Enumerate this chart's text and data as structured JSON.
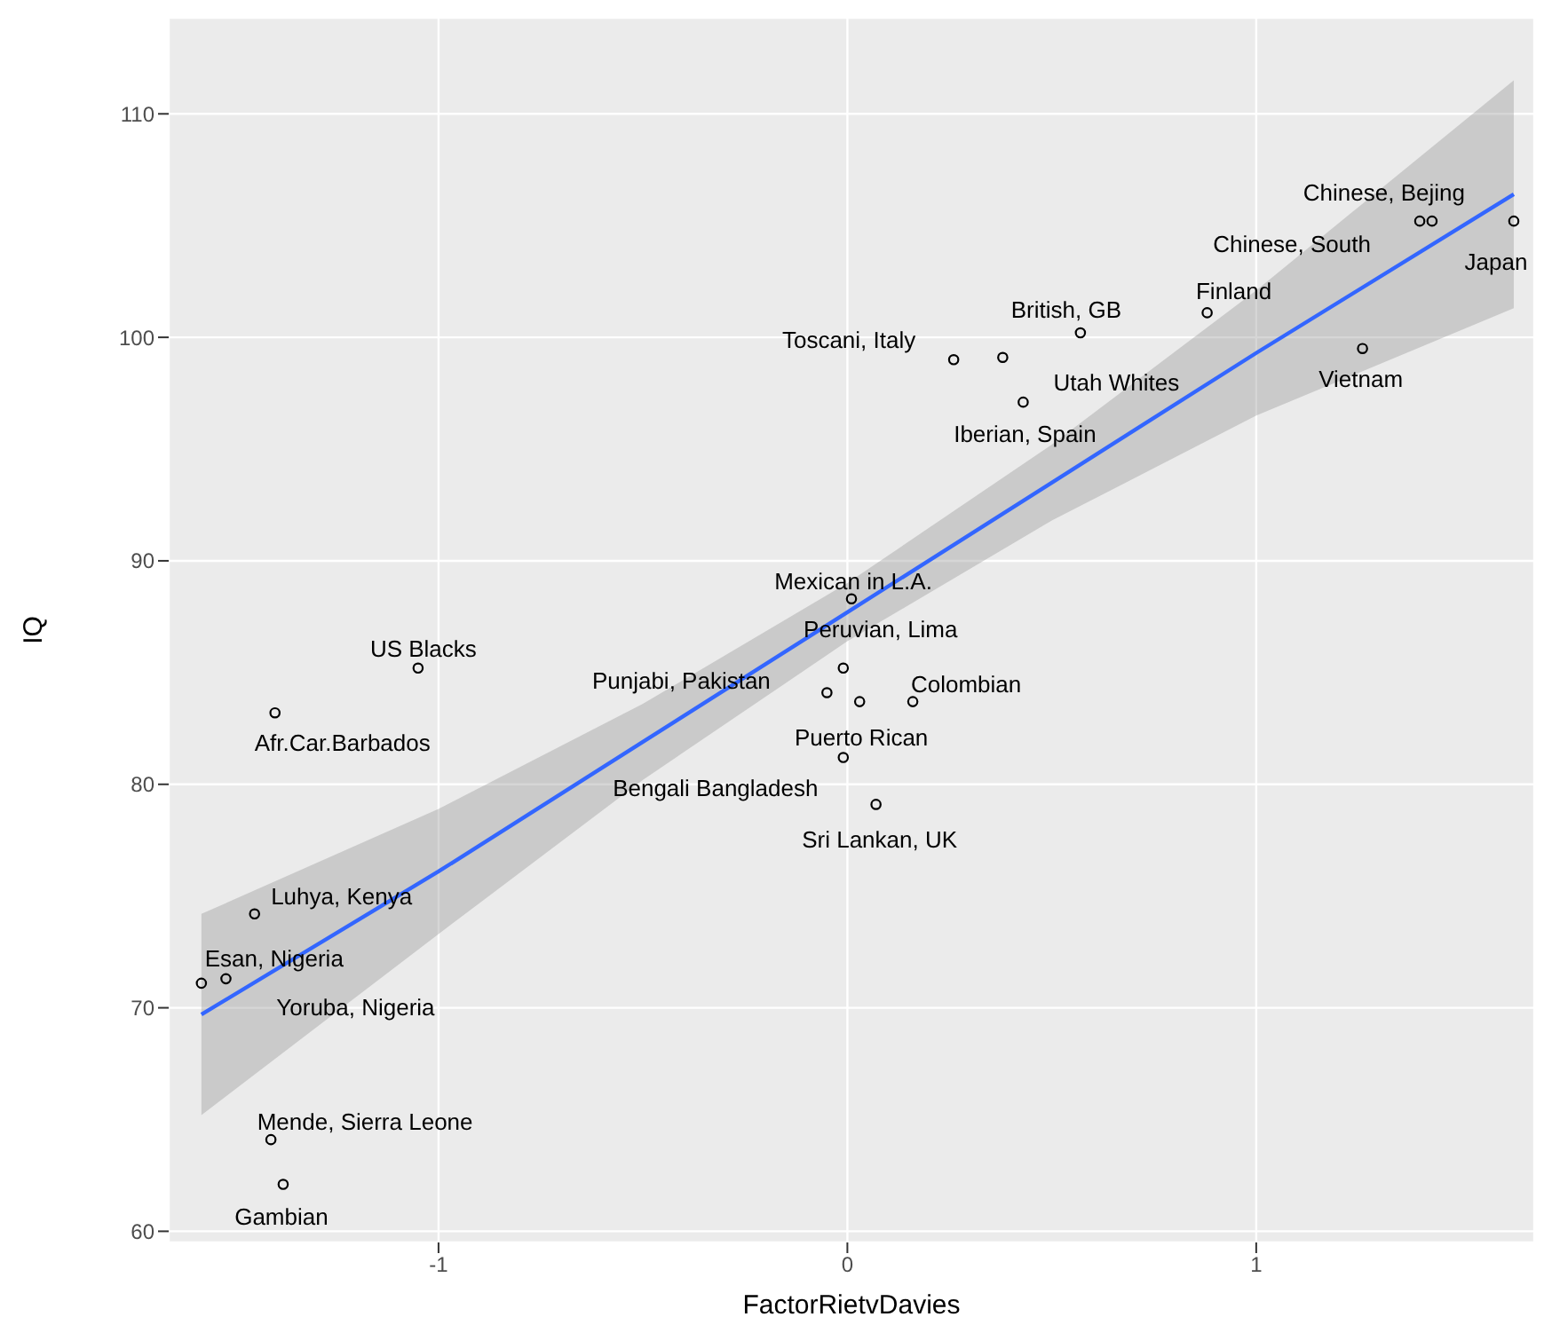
{
  "chart_data": {
    "type": "scatter",
    "xlabel": "FactorRietvDavies",
    "ylabel": "IQ",
    "xlim": [
      -1.66,
      1.68
    ],
    "ylim": [
      59.5,
      114.3
    ],
    "xticks": [
      -1,
      0,
      1
    ],
    "yticks": [
      60,
      70,
      80,
      90,
      100,
      110
    ],
    "grid": true,
    "series": [
      {
        "type": "scatter",
        "marker": "circle",
        "color": "#000000",
        "x": [
          1.43,
          1.4,
          1.63,
          0.88,
          0.57,
          0.26,
          0.38,
          0.43,
          1.26,
          0.01,
          -0.01,
          -0.05,
          0.16,
          0.03,
          -0.01,
          0.07,
          -1.05,
          -1.4,
          -1.45,
          -1.58,
          -1.52,
          -1.41,
          -1.38
        ],
        "values": [
          105.2,
          105.2,
          105.2,
          101.1,
          100.2,
          99.0,
          99.1,
          97.1,
          99.5,
          88.3,
          85.2,
          84.1,
          83.7,
          83.7,
          81.2,
          79.1,
          85.2,
          83.2,
          74.2,
          71.1,
          71.3,
          64.1,
          62.1
        ]
      },
      {
        "type": "line",
        "color": "#3366ff",
        "x": [
          -1.58,
          -1,
          -0.5,
          0,
          0.5,
          1,
          1.63
        ],
        "values": [
          69.7,
          76.1,
          81.9,
          87.7,
          93.5,
          99.3,
          106.4
        ],
        "lower": [
          65.2,
          73.3,
          80.2,
          86.4,
          91.8,
          96.5,
          101.3
        ],
        "upper": [
          74.2,
          78.9,
          83.6,
          89.0,
          95.2,
          102.1,
          111.5
        ]
      }
    ],
    "annotations": [
      {
        "text": "Chinese, Bejing",
        "x": 1.43,
        "y": 105.2
      },
      {
        "text": "Chinese, South",
        "x": 1.4,
        "y": 105.2
      },
      {
        "text": "Japan",
        "x": 1.63,
        "y": 105.2
      },
      {
        "text": "Finland",
        "x": 0.88,
        "y": 101.1
      },
      {
        "text": "British, GB",
        "x": 0.57,
        "y": 100.2
      },
      {
        "text": "Toscani, Italy",
        "x": 0.26,
        "y": 99.0
      },
      {
        "text": "Utah Whites",
        "x": 0.38,
        "y": 99.1
      },
      {
        "text": "Iberian, Spain",
        "x": 0.43,
        "y": 97.1
      },
      {
        "text": "Vietnam",
        "x": 1.26,
        "y": 99.5
      },
      {
        "text": "Mexican in L.A.",
        "x": 0.01,
        "y": 88.3
      },
      {
        "text": "Peruvian, Lima",
        "x": -0.01,
        "y": 85.2
      },
      {
        "text": "Punjabi, Pakistan",
        "x": -0.05,
        "y": 84.1
      },
      {
        "text": "Colombian",
        "x": 0.16,
        "y": 83.7
      },
      {
        "text": "Puerto Rican",
        "x": 0.03,
        "y": 83.7
      },
      {
        "text": "Bengali Bangladesh",
        "x": -0.01,
        "y": 81.2
      },
      {
        "text": "Sri Lankan, UK",
        "x": 0.07,
        "y": 79.1
      },
      {
        "text": "US Blacks",
        "x": -1.05,
        "y": 85.2
      },
      {
        "text": "Afr.Car.Barbados",
        "x": -1.4,
        "y": 83.2
      },
      {
        "text": "Luhya, Kenya",
        "x": -1.45,
        "y": 74.2
      },
      {
        "text": "Esan, Nigeria",
        "x": -1.58,
        "y": 71.1
      },
      {
        "text": "Yoruba, Nigeria",
        "x": -1.52,
        "y": 71.3
      },
      {
        "text": "Mende, Sierra Leone",
        "x": -1.41,
        "y": 64.1
      },
      {
        "text": "Gambian",
        "x": -1.38,
        "y": 62.1
      }
    ]
  }
}
